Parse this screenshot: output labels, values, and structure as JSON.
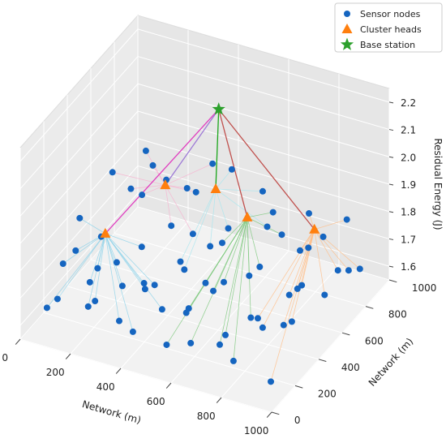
{
  "chart_data": {
    "type": "scatter3d",
    "xlabel": "Network (m)",
    "ylabel": "Network (m)",
    "zlabel": "Residual Energy (J)",
    "xlim": [
      0,
      1000
    ],
    "ylim": [
      0,
      1000
    ],
    "zlim": [
      1.55,
      2.25
    ],
    "xticks": [
      0,
      200,
      400,
      600,
      800,
      1000
    ],
    "yticks": [
      0,
      200,
      400,
      600,
      800,
      1000
    ],
    "zticks": [
      1.6,
      1.7,
      1.8,
      1.9,
      {
        "value": 2,
        "label": "2.0"
      },
      2.1,
      2.2
    ],
    "grid": true,
    "legend": "upper right",
    "series": [
      {
        "name": "Sensor nodes",
        "color": "#1565c0",
        "marker": "circle",
        "x": [
          50,
          120,
          200,
          80,
          160,
          260,
          300,
          350,
          420,
          480,
          540,
          600,
          650,
          700,
          760,
          820,
          880,
          950,
          40,
          130,
          220,
          300,
          380,
          450,
          520,
          590,
          660,
          730,
          800,
          870,
          940,
          60,
          150,
          240,
          320,
          400,
          470,
          560,
          630,
          700,
          780,
          850,
          930,
          30,
          110,
          200,
          280,
          350,
          430,
          500,
          580,
          650,
          720,
          800,
          880,
          960,
          60,
          160,
          250,
          330,
          520,
          610,
          690,
          770,
          850,
          930,
          100,
          380,
          620,
          900
        ],
        "y": [
          120,
          60,
          150,
          300,
          250,
          80,
          200,
          120,
          60,
          180,
          90,
          150,
          60,
          200,
          120,
          60,
          180,
          100,
          420,
          380,
          350,
          420,
          330,
          400,
          300,
          380,
          320,
          400,
          310,
          380,
          300,
          560,
          620,
          520,
          600,
          540,
          610,
          520,
          600,
          540,
          620,
          540,
          600,
          720,
          800,
          700,
          820,
          720,
          880,
          700,
          860,
          760,
          840,
          740,
          820,
          740,
          940,
          900,
          960,
          930,
          950,
          920,
          980,
          930,
          960,
          900,
          150,
          240,
          250,
          470
        ],
        "z": [
          1.62,
          1.7,
          1.65,
          1.75,
          1.68,
          1.72,
          1.6,
          1.78,
          1.66,
          1.7,
          1.63,
          1.75,
          1.68,
          1.62,
          1.71,
          1.66,
          1.74,
          1.6,
          1.8,
          1.66,
          1.72,
          1.61,
          1.69,
          1.76,
          1.64,
          1.7,
          1.78,
          1.63,
          1.69,
          1.65,
          1.72,
          1.67,
          1.84,
          1.7,
          1.76,
          1.65,
          1.72,
          1.8,
          1.66,
          1.74,
          1.62,
          1.7,
          1.67,
          1.82,
          1.72,
          1.9,
          1.78,
          1.68,
          1.86,
          1.75,
          1.7,
          1.82,
          1.66,
          1.74,
          1.64,
          1.7,
          1.8,
          1.74,
          1.69,
          1.83,
          1.77,
          1.65,
          1.72,
          1.68,
          1.75,
          1.62,
          1.78,
          1.74,
          1.8,
          1.76
        ]
      },
      {
        "name": "Cluster heads",
        "color": "#ff7f0e",
        "marker": "triangle",
        "link_colors": [
          "#8fd3ea",
          "#f7b3d0",
          "#a8e6ef",
          "#7fc97f",
          "#ffbf8a"
        ],
        "uplink_colors": [
          "#e040c0",
          "#9e7ad6",
          "#1aa51a",
          "#c0504d",
          "#c0504d"
        ],
        "x": [
          126,
          256,
          465,
          606,
          852
        ],
        "y": [
          454,
          686,
          668,
          635,
          680
        ],
        "z": [
          1.75,
          1.85,
          1.9,
          1.85,
          1.85
        ]
      },
      {
        "name": "Base station",
        "color": "#2ca02c",
        "marker": "star",
        "x": [
          404
        ],
        "y": [
          824
        ],
        "z": [
          2.1
        ]
      }
    ]
  }
}
